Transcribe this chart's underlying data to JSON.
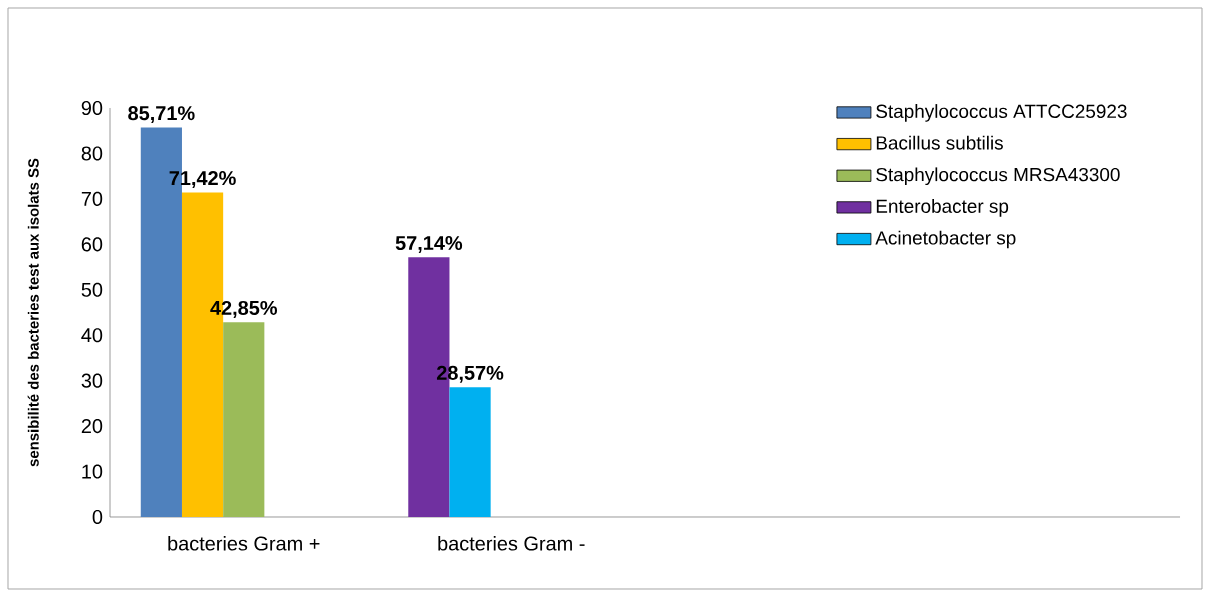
{
  "chart_data": {
    "type": "bar",
    "ylabel": "sensibilité des bacteries  test aux isolats  SS",
    "categories": [
      "bacteries Gram +",
      "bacteries Gram -",
      null,
      null
    ],
    "series": [
      {
        "name": "Staphylococcus ATTCC25923",
        "color": "#4f81bd",
        "values": [
          85.71,
          null,
          null,
          null
        ],
        "value_labels": [
          "85,71%",
          null,
          null,
          null
        ]
      },
      {
        "name": "Bacillus subtilis",
        "color": "#ffc000",
        "values": [
          71.42,
          null,
          null,
          null
        ],
        "value_labels": [
          "71,42%",
          null,
          null,
          null
        ]
      },
      {
        "name": "Staphylococcus MRSA43300",
        "color": "#9bbb59",
        "values": [
          42.85,
          null,
          null,
          null
        ],
        "value_labels": [
          "42,85%",
          null,
          null,
          null
        ]
      },
      {
        "name": "Enterobacter sp",
        "color": "#7030a0",
        "values": [
          null,
          57.14,
          null,
          null
        ],
        "value_labels": [
          null,
          "57,14%",
          null,
          null
        ]
      },
      {
        "name": "Acinetobacter sp",
        "color": "#00b0f0",
        "values": [
          null,
          28.57,
          null,
          null
        ],
        "value_labels": [
          null,
          "28,57%",
          null,
          null
        ]
      }
    ],
    "ylim": [
      0,
      90
    ],
    "yticks": [
      0,
      10,
      20,
      30,
      40,
      50,
      60,
      70,
      80,
      90
    ],
    "grid": false,
    "legend": "top right"
  }
}
